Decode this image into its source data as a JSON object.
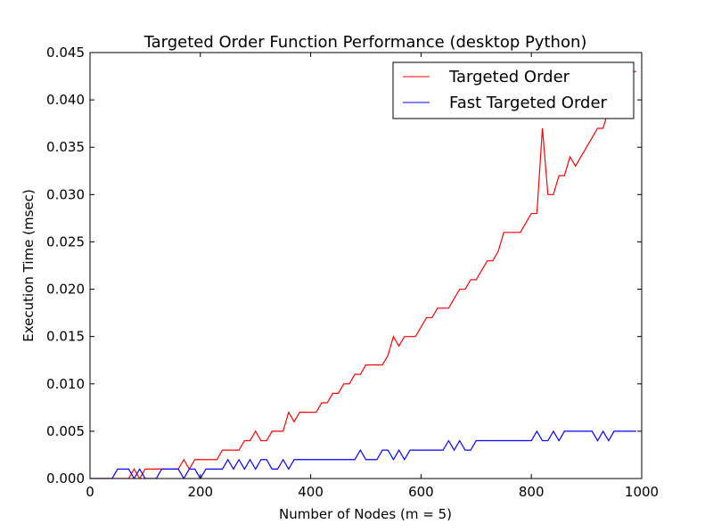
{
  "chart_data": {
    "type": "line",
    "title": "Targeted Order Function Performance (desktop Python)",
    "xlabel": "Number of Nodes (m = 5)",
    "ylabel": "Execution Time (msec)",
    "xlim": [
      0,
      1000
    ],
    "ylim": [
      0,
      0.045
    ],
    "xticks": [
      0,
      200,
      400,
      600,
      800,
      1000
    ],
    "xtick_labels": [
      "0",
      "200",
      "400",
      "600",
      "800",
      "1000"
    ],
    "yticks": [
      0,
      0.005,
      0.01,
      0.015,
      0.02,
      0.025,
      0.03,
      0.035,
      0.04,
      0.045
    ],
    "ytick_labels": [
      "0.000",
      "0.005",
      "0.010",
      "0.015",
      "0.020",
      "0.025",
      "0.030",
      "0.035",
      "0.040",
      "0.045"
    ],
    "grid": false,
    "legend_position": "top-right",
    "series": [
      {
        "name": "Targeted Order",
        "color": "#ff0000",
        "x": [
          0,
          10,
          20,
          30,
          40,
          50,
          60,
          70,
          80,
          90,
          100,
          110,
          120,
          130,
          140,
          150,
          160,
          170,
          180,
          190,
          200,
          210,
          220,
          230,
          240,
          250,
          260,
          270,
          280,
          290,
          300,
          310,
          320,
          330,
          340,
          350,
          360,
          370,
          380,
          390,
          400,
          410,
          420,
          430,
          440,
          450,
          460,
          470,
          480,
          490,
          500,
          510,
          520,
          530,
          540,
          550,
          560,
          570,
          580,
          590,
          600,
          610,
          620,
          630,
          640,
          650,
          660,
          670,
          680,
          690,
          700,
          710,
          720,
          730,
          740,
          750,
          760,
          770,
          780,
          790,
          800,
          810,
          820,
          830,
          840,
          850,
          860,
          870,
          880,
          890,
          900,
          910,
          920,
          930,
          940,
          950,
          960,
          970,
          980,
          990
        ],
        "y": [
          0,
          0,
          0,
          0,
          0,
          0,
          0,
          0,
          0.001,
          0,
          0.001,
          0.001,
          0.001,
          0.001,
          0.001,
          0.001,
          0.001,
          0.002,
          0.001,
          0.002,
          0.002,
          0.002,
          0.002,
          0.002,
          0.003,
          0.003,
          0.003,
          0.003,
          0.004,
          0.004,
          0.005,
          0.004,
          0.004,
          0.005,
          0.005,
          0.005,
          0.007,
          0.006,
          0.007,
          0.007,
          0.007,
          0.007,
          0.008,
          0.008,
          0.009,
          0.009,
          0.01,
          0.01,
          0.011,
          0.011,
          0.012,
          0.012,
          0.012,
          0.012,
          0.013,
          0.015,
          0.014,
          0.015,
          0.015,
          0.015,
          0.016,
          0.017,
          0.017,
          0.018,
          0.018,
          0.018,
          0.019,
          0.02,
          0.02,
          0.021,
          0.021,
          0.022,
          0.023,
          0.023,
          0.024,
          0.026,
          0.026,
          0.026,
          0.026,
          0.027,
          0.028,
          0.028,
          0.037,
          0.03,
          0.03,
          0.032,
          0.032,
          0.034,
          0.033,
          0.034,
          0.035,
          0.036,
          0.037,
          0.037,
          0.039,
          0.04,
          0.041,
          0.042,
          0.043,
          0.043
        ]
      },
      {
        "name": "Fast Targeted Order",
        "color": "#0000ff",
        "x": [
          0,
          10,
          20,
          30,
          40,
          50,
          60,
          70,
          80,
          90,
          100,
          110,
          120,
          130,
          140,
          150,
          160,
          170,
          180,
          190,
          200,
          210,
          220,
          230,
          240,
          250,
          260,
          270,
          280,
          290,
          300,
          310,
          320,
          330,
          340,
          350,
          360,
          370,
          380,
          390,
          400,
          410,
          420,
          430,
          440,
          450,
          460,
          470,
          480,
          490,
          500,
          510,
          520,
          530,
          540,
          550,
          560,
          570,
          580,
          590,
          600,
          610,
          620,
          630,
          640,
          650,
          660,
          670,
          680,
          690,
          700,
          710,
          720,
          730,
          740,
          750,
          760,
          770,
          780,
          790,
          800,
          810,
          820,
          830,
          840,
          850,
          860,
          870,
          880,
          890,
          900,
          910,
          920,
          930,
          940,
          950,
          960,
          970,
          980,
          990
        ],
        "y": [
          0,
          0,
          0,
          0,
          0,
          0.001,
          0.001,
          0.001,
          0,
          0.001,
          0,
          0,
          0,
          0.001,
          0.001,
          0.001,
          0.001,
          0,
          0.001,
          0.001,
          0,
          0.001,
          0.001,
          0.001,
          0.001,
          0.002,
          0.001,
          0.002,
          0.001,
          0.002,
          0.001,
          0.002,
          0.002,
          0.001,
          0.001,
          0.002,
          0.001,
          0.002,
          0.002,
          0.002,
          0.002,
          0.002,
          0.002,
          0.002,
          0.002,
          0.002,
          0.002,
          0.002,
          0.002,
          0.003,
          0.002,
          0.002,
          0.002,
          0.003,
          0.003,
          0.002,
          0.003,
          0.002,
          0.003,
          0.003,
          0.003,
          0.003,
          0.003,
          0.003,
          0.003,
          0.004,
          0.003,
          0.004,
          0.003,
          0.003,
          0.004,
          0.004,
          0.004,
          0.004,
          0.004,
          0.004,
          0.004,
          0.004,
          0.004,
          0.004,
          0.004,
          0.005,
          0.004,
          0.004,
          0.005,
          0.004,
          0.005,
          0.005,
          0.005,
          0.005,
          0.005,
          0.005,
          0.004,
          0.005,
          0.004,
          0.005,
          0.005,
          0.005,
          0.005,
          0.005
        ]
      }
    ]
  }
}
